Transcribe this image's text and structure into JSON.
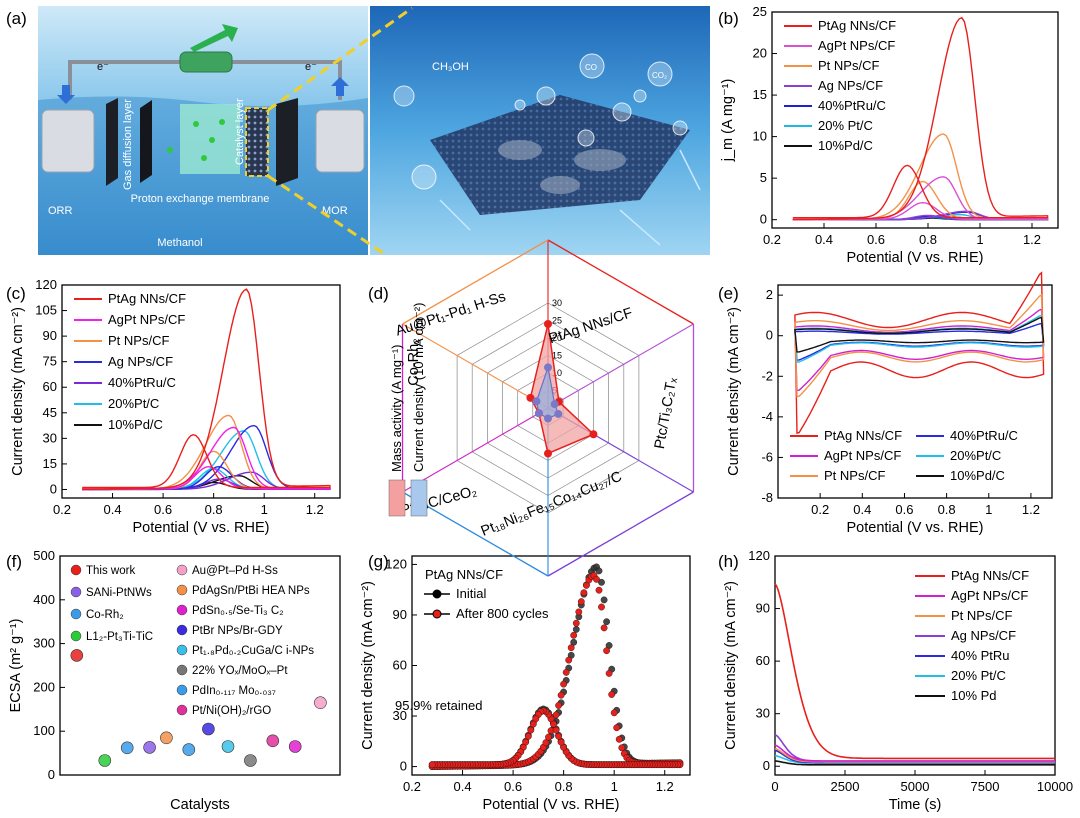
{
  "panels": {
    "a": {
      "label": "(a)",
      "texts": [
        "ORR",
        "MOR",
        "Methanol",
        "Proton exchange membrane",
        "Gas diffusion layer",
        "Catalyst layer",
        "e⁻",
        "e⁻",
        "CH₃OH",
        "CO",
        "CO₂"
      ]
    },
    "b": {
      "label": "(b)"
    },
    "c": {
      "label": "(c)"
    },
    "d": {
      "label": "(d)"
    },
    "e": {
      "label": "(e)"
    },
    "f": {
      "label": "(f)"
    },
    "g": {
      "label": "(g)",
      "inset_title": "PtAg NNs/CF",
      "annotation": "95.9% retained"
    },
    "h": {
      "label": "(h)"
    }
  },
  "chart_data": [
    {
      "panel": "b",
      "type": "line",
      "xlabel": "Potential (V vs. RHE)",
      "ylabel": "j_m (A mg⁻¹)",
      "xlim": [
        0.2,
        1.3
      ],
      "ylim": [
        -1,
        25
      ],
      "xticks": [
        0.2,
        0.4,
        0.6,
        0.8,
        1.0,
        1.2
      ],
      "yticks": [
        0,
        5,
        10,
        15,
        20,
        25
      ],
      "legend_position": "top-left",
      "series": [
        {
          "name": "PtAg NNs/CF",
          "color": "#e8201c",
          "peak_x": 0.93,
          "peak_y": 24.0,
          "back_x": 0.72,
          "back_y": 6.3
        },
        {
          "name": "AgPt NPs/CF",
          "color": "#d94fd6",
          "peak_x": 0.86,
          "peak_y": 5.1,
          "back_x": 0.78,
          "back_y": 2.0
        },
        {
          "name": "Pt NPs/CF",
          "color": "#f39149",
          "peak_x": 0.86,
          "peak_y": 10.2,
          "back_x": 0.78,
          "back_y": 4.5
        },
        {
          "name": "Ag NPs/CF",
          "color": "#8b3fd9",
          "peak_x": 0.95,
          "peak_y": 1.0,
          "back_x": 0.8,
          "back_y": 0.5
        },
        {
          "name": "40%PtRu/C",
          "color": "#1f1fd0",
          "peak_x": 0.95,
          "peak_y": 0.9,
          "back_x": 0.8,
          "back_y": 0.4
        },
        {
          "name": "20% Pt/C",
          "color": "#1fb8e0",
          "peak_x": 0.92,
          "peak_y": 0.6,
          "back_x": 0.8,
          "back_y": 0.3
        },
        {
          "name": "10%Pd/C",
          "color": "#111111",
          "peak_x": 0.9,
          "peak_y": 0.3,
          "back_x": 0.8,
          "back_y": 0.2
        }
      ]
    },
    {
      "panel": "c",
      "type": "line",
      "xlabel": "Potential (V vs. RHE)",
      "ylabel": "Current density (mA cm⁻²)",
      "xlim": [
        0.2,
        1.3
      ],
      "ylim": [
        -5,
        120
      ],
      "xticks": [
        0.2,
        0.4,
        0.6,
        0.8,
        1.0,
        1.2
      ],
      "yticks": [
        0,
        15,
        30,
        45,
        60,
        75,
        90,
        105,
        120
      ],
      "legend_position": "top-left",
      "series": [
        {
          "name": "PtAg NNs/CF",
          "color": "#e8201c",
          "peak_x": 0.93,
          "peak_y": 116,
          "back_x": 0.72,
          "back_y": 31
        },
        {
          "name": "AgPt NPs/CF",
          "color": "#f020e8",
          "peak_x": 0.88,
          "peak_y": 36,
          "back_x": 0.78,
          "back_y": 13
        },
        {
          "name": "Pt NPs/CF",
          "color": "#f39149",
          "peak_x": 0.86,
          "peak_y": 43,
          "back_x": 0.8,
          "back_y": 22
        },
        {
          "name": "Ag NPs/CF",
          "color": "#2a2ae0",
          "peak_x": 0.96,
          "peak_y": 37,
          "back_x": 0.82,
          "back_y": 13
        },
        {
          "name": "40%PtRu/C",
          "color": "#7a2ad9",
          "peak_x": 0.95,
          "peak_y": 10,
          "back_x": 0.82,
          "back_y": 6
        },
        {
          "name": "20%Pt/C",
          "color": "#1fc0e8",
          "peak_x": 0.92,
          "peak_y": 34,
          "back_x": 0.8,
          "back_y": 12
        },
        {
          "name": "10%Pd/C",
          "color": "#111111",
          "peak_x": 0.9,
          "peak_y": 8,
          "back_x": 0.8,
          "back_y": 4
        }
      ]
    },
    {
      "panel": "d",
      "type": "radar",
      "legend": [
        "Mass activity (A mg⁻¹)",
        "Current density (10 mA cm⁻²)"
      ],
      "legend_colors": [
        "#f5a0a0",
        "#a8c8ee"
      ],
      "scale_labels": [
        "0",
        "5",
        "10",
        "15",
        "20",
        "25",
        "30"
      ],
      "axes": [
        {
          "name": "PtAg NNs/CF",
          "color": "#e8201c",
          "mass_activity": 24.0,
          "current_density": 11.6
        },
        {
          "name": "Ptc/Ti₃C₂Tₓ",
          "color": "#b44fd9",
          "mass_activity": 3.6,
          "current_density": 2.2
        },
        {
          "name": "Pt₁₈Ni₂₆Fe₁₅Co₁₄Cu₂₇/C",
          "color": "#7a3fd9",
          "mass_activity": 15.0,
          "current_density": 3.4
        },
        {
          "name": "Pt NC/CeO₂",
          "color": "#2a8adf",
          "mass_activity": 13.0,
          "current_density": 3.0
        },
        {
          "name": "Co-Rh₂",
          "color": "#d020c8",
          "mass_activity": 3.0,
          "current_density": 3.0
        },
        {
          "name": "Au@Pt₁-Pd₁ H-Ss",
          "color": "#f39149",
          "mass_activity": 5.8,
          "current_density": 3.8
        }
      ]
    },
    {
      "panel": "e",
      "type": "line",
      "xlabel": "Potential (V vs. RHE)",
      "ylabel": "Current density (mA cm⁻²)",
      "xlim": [
        0.0,
        1.3
      ],
      "ylim": [
        -8,
        2.5
      ],
      "xticks": [
        0.2,
        0.4,
        0.6,
        0.8,
        1.0,
        1.2
      ],
      "yticks": [
        -8,
        -6,
        -4,
        -2,
        0,
        2
      ],
      "legend_position": "bottom, two columns",
      "series": [
        {
          "name": "PtAg NNs/CF",
          "color": "#e8201c",
          "max_y": 3.1,
          "min_y": -4.8
        },
        {
          "name": "40%PtRu/C",
          "color": "#2a2ae0",
          "max_y": 0.6,
          "min_y": -1.2
        },
        {
          "name": "AgPt NPs/CF",
          "color": "#d020d0",
          "max_y": 1.3,
          "min_y": -2.7
        },
        {
          "name": "20%Pt/C",
          "color": "#1fc0e8",
          "max_y": 1.0,
          "min_y": -1.3
        },
        {
          "name": "Pt NPs/CF",
          "color": "#f39149",
          "max_y": 2.0,
          "min_y": -3.0
        },
        {
          "name": "10%Pd/C",
          "color": "#111111",
          "max_y": 0.9,
          "min_y": -0.8
        }
      ]
    },
    {
      "panel": "f",
      "type": "scatter",
      "xlabel": "Catalysts",
      "ylabel": "ECSA (m² g⁻¹)",
      "ylim": [
        0,
        500
      ],
      "yticks": [
        0,
        100,
        200,
        300,
        400,
        500
      ],
      "points": [
        {
          "name": "This work",
          "value": 273,
          "color": "#e8201c"
        },
        {
          "name": "SANi-PtNWs",
          "value": 63,
          "color": "#8b5fe8"
        },
        {
          "name": "Co-Rh₂",
          "value": 62,
          "color": "#3a9be8"
        },
        {
          "name": "L1₂-Pt₃Ti-TiC",
          "value": 33,
          "color": "#2acc3a"
        },
        {
          "name": "Au@Pt–Pd H-Ss",
          "value": 165,
          "color": "#f5a0c8"
        },
        {
          "name": "PdAgSn/PtBi HEA NPs",
          "value": 85,
          "color": "#f39149"
        },
        {
          "name": "PdSn₀.₅/Se-Ti₃ C₂",
          "value": 65,
          "color": "#e020d0"
        },
        {
          "name": "PtBr NPs/Br-GDY",
          "value": 105,
          "color": "#3a2ae0"
        },
        {
          "name": "Pt₁.₈Pd₀.₂CuGa/C i-NPs",
          "value": 65,
          "color": "#3ac0e8"
        },
        {
          "name": "22% YOₓ/MoOₓ–Pt",
          "value": 33,
          "color": "#777777"
        },
        {
          "name": "PdIn₀.₁₁₇ Mo₀.₀₃₇",
          "value": 58,
          "color": "#3a9be8"
        },
        {
          "name": "Pt/Ni(OH)₂/rGO",
          "value": 78,
          "color": "#e0309e"
        }
      ]
    },
    {
      "panel": "g",
      "type": "line",
      "xlabel": "Potential (V vs. RHE)",
      "ylabel": "Current density (mA cm⁻²)",
      "xlim": [
        0.2,
        1.3
      ],
      "ylim": [
        -5,
        125
      ],
      "xticks": [
        0.2,
        0.4,
        0.6,
        0.8,
        1.0,
        1.2
      ],
      "yticks": [
        0,
        30,
        60,
        90,
        120
      ],
      "legend_position": "top-left",
      "series": [
        {
          "name": "Initial",
          "color": "#000000",
          "peak_x": 0.93,
          "peak_y": 117,
          "back_x": 0.72,
          "back_y": 33
        },
        {
          "name": "After 800 cycles",
          "color": "#e8201c",
          "peak_x": 0.92,
          "peak_y": 112,
          "back_x": 0.72,
          "back_y": 32
        }
      ]
    },
    {
      "panel": "h",
      "type": "line",
      "xlabel": "Time (s)",
      "ylabel": "Current density (mA cm⁻²)",
      "xlim": [
        0,
        10000
      ],
      "ylim": [
        -5,
        120
      ],
      "xticks": [
        0,
        2500,
        5000,
        7500,
        10000
      ],
      "yticks": [
        0,
        30,
        60,
        90,
        120
      ],
      "legend_position": "top-right",
      "series": [
        {
          "name": "PtAg NNs/CF",
          "color": "#e8201c",
          "start": 104,
          "end": 4.5
        },
        {
          "name": "AgPt NPs/CF",
          "color": "#d020d0",
          "start": 12,
          "end": 3.0
        },
        {
          "name": "Pt NPs/CF",
          "color": "#f39149",
          "start": 10,
          "end": 2.5
        },
        {
          "name": "Ag NPs/CF",
          "color": "#8b3fd9",
          "start": 18,
          "end": 3.0
        },
        {
          "name": "40% PtRu",
          "color": "#2a2ae0",
          "start": 9,
          "end": 2.0
        },
        {
          "name": "20% Pt/C",
          "color": "#1fc0e8",
          "start": 6,
          "end": 1.8
        },
        {
          "name": "10% Pd",
          "color": "#111111",
          "start": 3,
          "end": 0.8
        }
      ]
    }
  ]
}
